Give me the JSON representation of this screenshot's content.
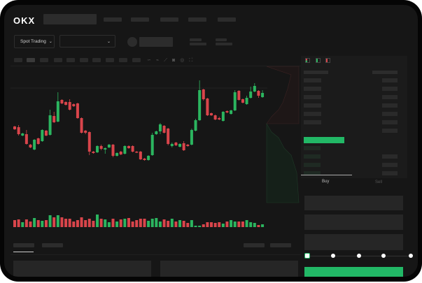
{
  "header": {
    "logo": "OKX",
    "nav_placeholders": 5
  },
  "toolbar": {
    "market_button": "Spot Trading",
    "pair_select": ""
  },
  "order_form": {
    "tabs": [
      {
        "label": "Buy",
        "active": true
      },
      {
        "label": "Sell",
        "active": false
      }
    ],
    "slider_percent": 0,
    "slider_stops": [
      0,
      25,
      50,
      75,
      100
    ]
  },
  "colors": {
    "up": "#2bb55f",
    "down": "#d9454b",
    "accent": "#22b866",
    "bg": "#161616"
  },
  "icons": [
    "chevron-down-icon",
    "indicator-icon",
    "line-icon",
    "ruler-icon",
    "camera-icon",
    "settings-icon",
    "fullscreen-icon",
    "orderbook-both-icon",
    "orderbook-buy-icon",
    "orderbook-sell-icon"
  ],
  "chart_data": {
    "type": "candlestick",
    "title": "",
    "xlabel": "",
    "ylabel": "",
    "candles": [
      [
        69,
        65,
        70,
        64
      ],
      [
        68,
        58,
        71,
        56
      ],
      [
        56,
        59,
        60,
        55
      ],
      [
        58,
        44,
        64,
        43
      ],
      [
        43,
        39,
        44,
        38
      ],
      [
        36,
        50,
        51,
        35
      ],
      [
        52,
        44,
        53,
        43
      ],
      [
        48,
        64,
        65,
        47
      ],
      [
        63,
        56,
        64,
        55
      ],
      [
        57,
        85,
        93,
        56
      ],
      [
        84,
        75,
        90,
        74
      ],
      [
        76,
        105,
        118,
        75
      ],
      [
        107,
        102,
        108,
        101
      ],
      [
        104,
        100,
        105,
        99
      ],
      [
        104,
        93,
        108,
        92
      ],
      [
        101,
        98,
        102,
        97
      ],
      [
        102,
        81,
        103,
        80
      ],
      [
        81,
        60,
        82,
        59
      ],
      [
        63,
        60,
        64,
        58
      ],
      [
        61,
        33,
        62,
        28
      ],
      [
        33,
        31,
        34,
        30
      ],
      [
        32,
        41,
        42,
        31
      ],
      [
        41,
        37,
        43,
        35
      ],
      [
        36,
        38,
        39,
        30
      ],
      [
        39,
        43,
        44,
        38
      ],
      [
        43,
        27,
        44,
        25
      ],
      [
        27,
        31,
        32,
        26
      ],
      [
        33,
        29,
        34,
        28
      ],
      [
        30,
        41,
        42,
        29
      ],
      [
        41,
        38,
        42,
        37
      ],
      [
        41,
        33,
        42,
        32
      ],
      [
        33,
        32,
        34,
        31
      ],
      [
        33,
        22,
        34,
        21
      ],
      [
        23,
        21,
        24,
        20
      ],
      [
        21,
        27,
        28,
        20
      ],
      [
        28,
        57,
        60,
        27
      ],
      [
        58,
        62,
        63,
        57
      ],
      [
        62,
        72,
        74,
        58
      ],
      [
        70,
        60,
        71,
        59
      ],
      [
        66,
        44,
        67,
        42
      ],
      [
        41,
        44,
        46,
        39
      ],
      [
        46,
        42,
        47,
        41
      ],
      [
        40,
        44,
        45,
        39
      ],
      [
        45,
        35,
        48,
        34
      ],
      [
        43,
        41,
        44,
        40
      ],
      [
        43,
        64,
        66,
        42
      ],
      [
        63,
        78,
        80,
        62
      ],
      [
        78,
        121,
        135,
        77
      ],
      [
        122,
        108,
        123,
        106
      ],
      [
        109,
        85,
        110,
        84
      ],
      [
        88,
        85,
        89,
        84
      ],
      [
        85,
        79,
        86,
        78
      ],
      [
        81,
        79,
        83,
        78
      ],
      [
        77,
        90,
        91,
        76
      ],
      [
        91,
        89,
        92,
        88
      ],
      [
        87,
        92,
        93,
        86
      ],
      [
        92,
        118,
        121,
        91
      ],
      [
        120,
        107,
        121,
        106
      ],
      [
        108,
        103,
        109,
        102
      ],
      [
        101,
        110,
        113,
        100
      ],
      [
        110,
        119,
        126,
        109
      ],
      [
        119,
        127,
        131,
        118
      ],
      [
        120,
        113,
        121,
        110
      ],
      [
        111,
        117,
        121,
        110
      ]
    ],
    "volume": [
      10,
      11,
      7,
      11,
      8,
      13,
      10,
      9,
      10,
      17,
      14,
      17,
      14,
      12,
      12,
      8,
      10,
      14,
      10,
      12,
      9,
      18,
      12,
      11,
      7,
      12,
      8,
      11,
      12,
      13,
      8,
      10,
      12,
      12,
      9,
      12,
      13,
      8,
      11,
      9,
      12,
      8,
      10,
      9,
      6,
      10,
      2,
      2,
      4,
      7,
      7,
      6,
      7,
      5,
      8,
      10,
      8,
      8,
      8,
      10,
      7,
      6,
      3,
      4
    ]
  }
}
